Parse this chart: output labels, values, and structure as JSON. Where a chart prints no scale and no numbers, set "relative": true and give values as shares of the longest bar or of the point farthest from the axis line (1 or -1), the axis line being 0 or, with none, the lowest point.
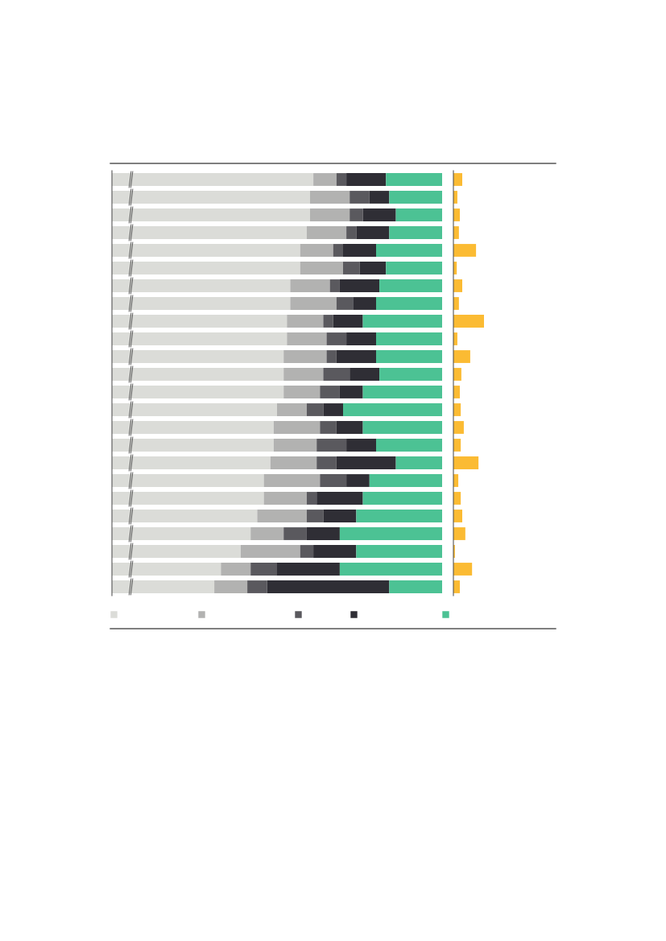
{
  "chart_data": [
    {
      "type": "bar",
      "orientation": "horizontal",
      "stacked": true,
      "relative": true,
      "grid": false,
      "categories": [
        null,
        null,
        null,
        null,
        null,
        null,
        null,
        null,
        null,
        null,
        null,
        null,
        null,
        null,
        null,
        null,
        null,
        null,
        null,
        null,
        null,
        null,
        null,
        null
      ],
      "series": [
        {
          "color": "#dbdcd8",
          "values": [
            0.61,
            0.6,
            0.6,
            0.59,
            0.57,
            0.57,
            0.54,
            0.54,
            0.53,
            0.53,
            0.52,
            0.52,
            0.52,
            0.5,
            0.49,
            0.49,
            0.48,
            0.46,
            0.46,
            0.44,
            0.42,
            0.39,
            0.33,
            0.31
          ]
        },
        {
          "color": "#b2b2b1",
          "values": [
            0.07,
            0.12,
            0.12,
            0.12,
            0.1,
            0.13,
            0.12,
            0.14,
            0.11,
            0.12,
            0.13,
            0.12,
            0.11,
            0.09,
            0.14,
            0.13,
            0.14,
            0.17,
            0.13,
            0.15,
            0.1,
            0.18,
            0.09,
            0.1
          ]
        },
        {
          "color": "#5a595e",
          "values": [
            0.03,
            0.06,
            0.04,
            0.03,
            0.03,
            0.05,
            0.03,
            0.05,
            0.03,
            0.06,
            0.03,
            0.08,
            0.06,
            0.05,
            0.05,
            0.09,
            0.06,
            0.08,
            0.03,
            0.05,
            0.07,
            0.04,
            0.08,
            0.06
          ]
        },
        {
          "color": "#2f2e35",
          "values": [
            0.12,
            0.06,
            0.1,
            0.1,
            0.1,
            0.08,
            0.12,
            0.07,
            0.09,
            0.09,
            0.12,
            0.09,
            0.07,
            0.06,
            0.08,
            0.09,
            0.18,
            0.07,
            0.14,
            0.1,
            0.1,
            0.13,
            0.19,
            0.37
          ]
        },
        {
          "color": "#4cc294",
          "values": [
            0.17,
            0.16,
            0.14,
            0.16,
            0.2,
            0.17,
            0.19,
            0.2,
            0.24,
            0.2,
            0.2,
            0.19,
            0.24,
            0.3,
            0.24,
            0.2,
            0.14,
            0.22,
            0.24,
            0.26,
            0.31,
            0.26,
            0.31,
            0.16
          ]
        }
      ]
    },
    {
      "type": "bar",
      "orientation": "horizontal",
      "relative": true,
      "grid": false,
      "categories": [
        null,
        null,
        null,
        null,
        null,
        null,
        null,
        null,
        null,
        null,
        null,
        null,
        null,
        null,
        null,
        null,
        null,
        null,
        null,
        null,
        null,
        null,
        null,
        null
      ],
      "series": [
        {
          "color": "#fbbb33",
          "values": [
            0.29,
            0.13,
            0.21,
            0.18,
            0.74,
            0.11,
            0.29,
            0.18,
            1,
            0.13,
            0.55,
            0.26,
            0.21,
            0.24,
            0.34,
            0.24,
            0.82,
            0.16,
            0.24,
            0.29,
            0.39,
            0.05,
            0.61,
            0.21
          ]
        }
      ]
    }
  ]
}
